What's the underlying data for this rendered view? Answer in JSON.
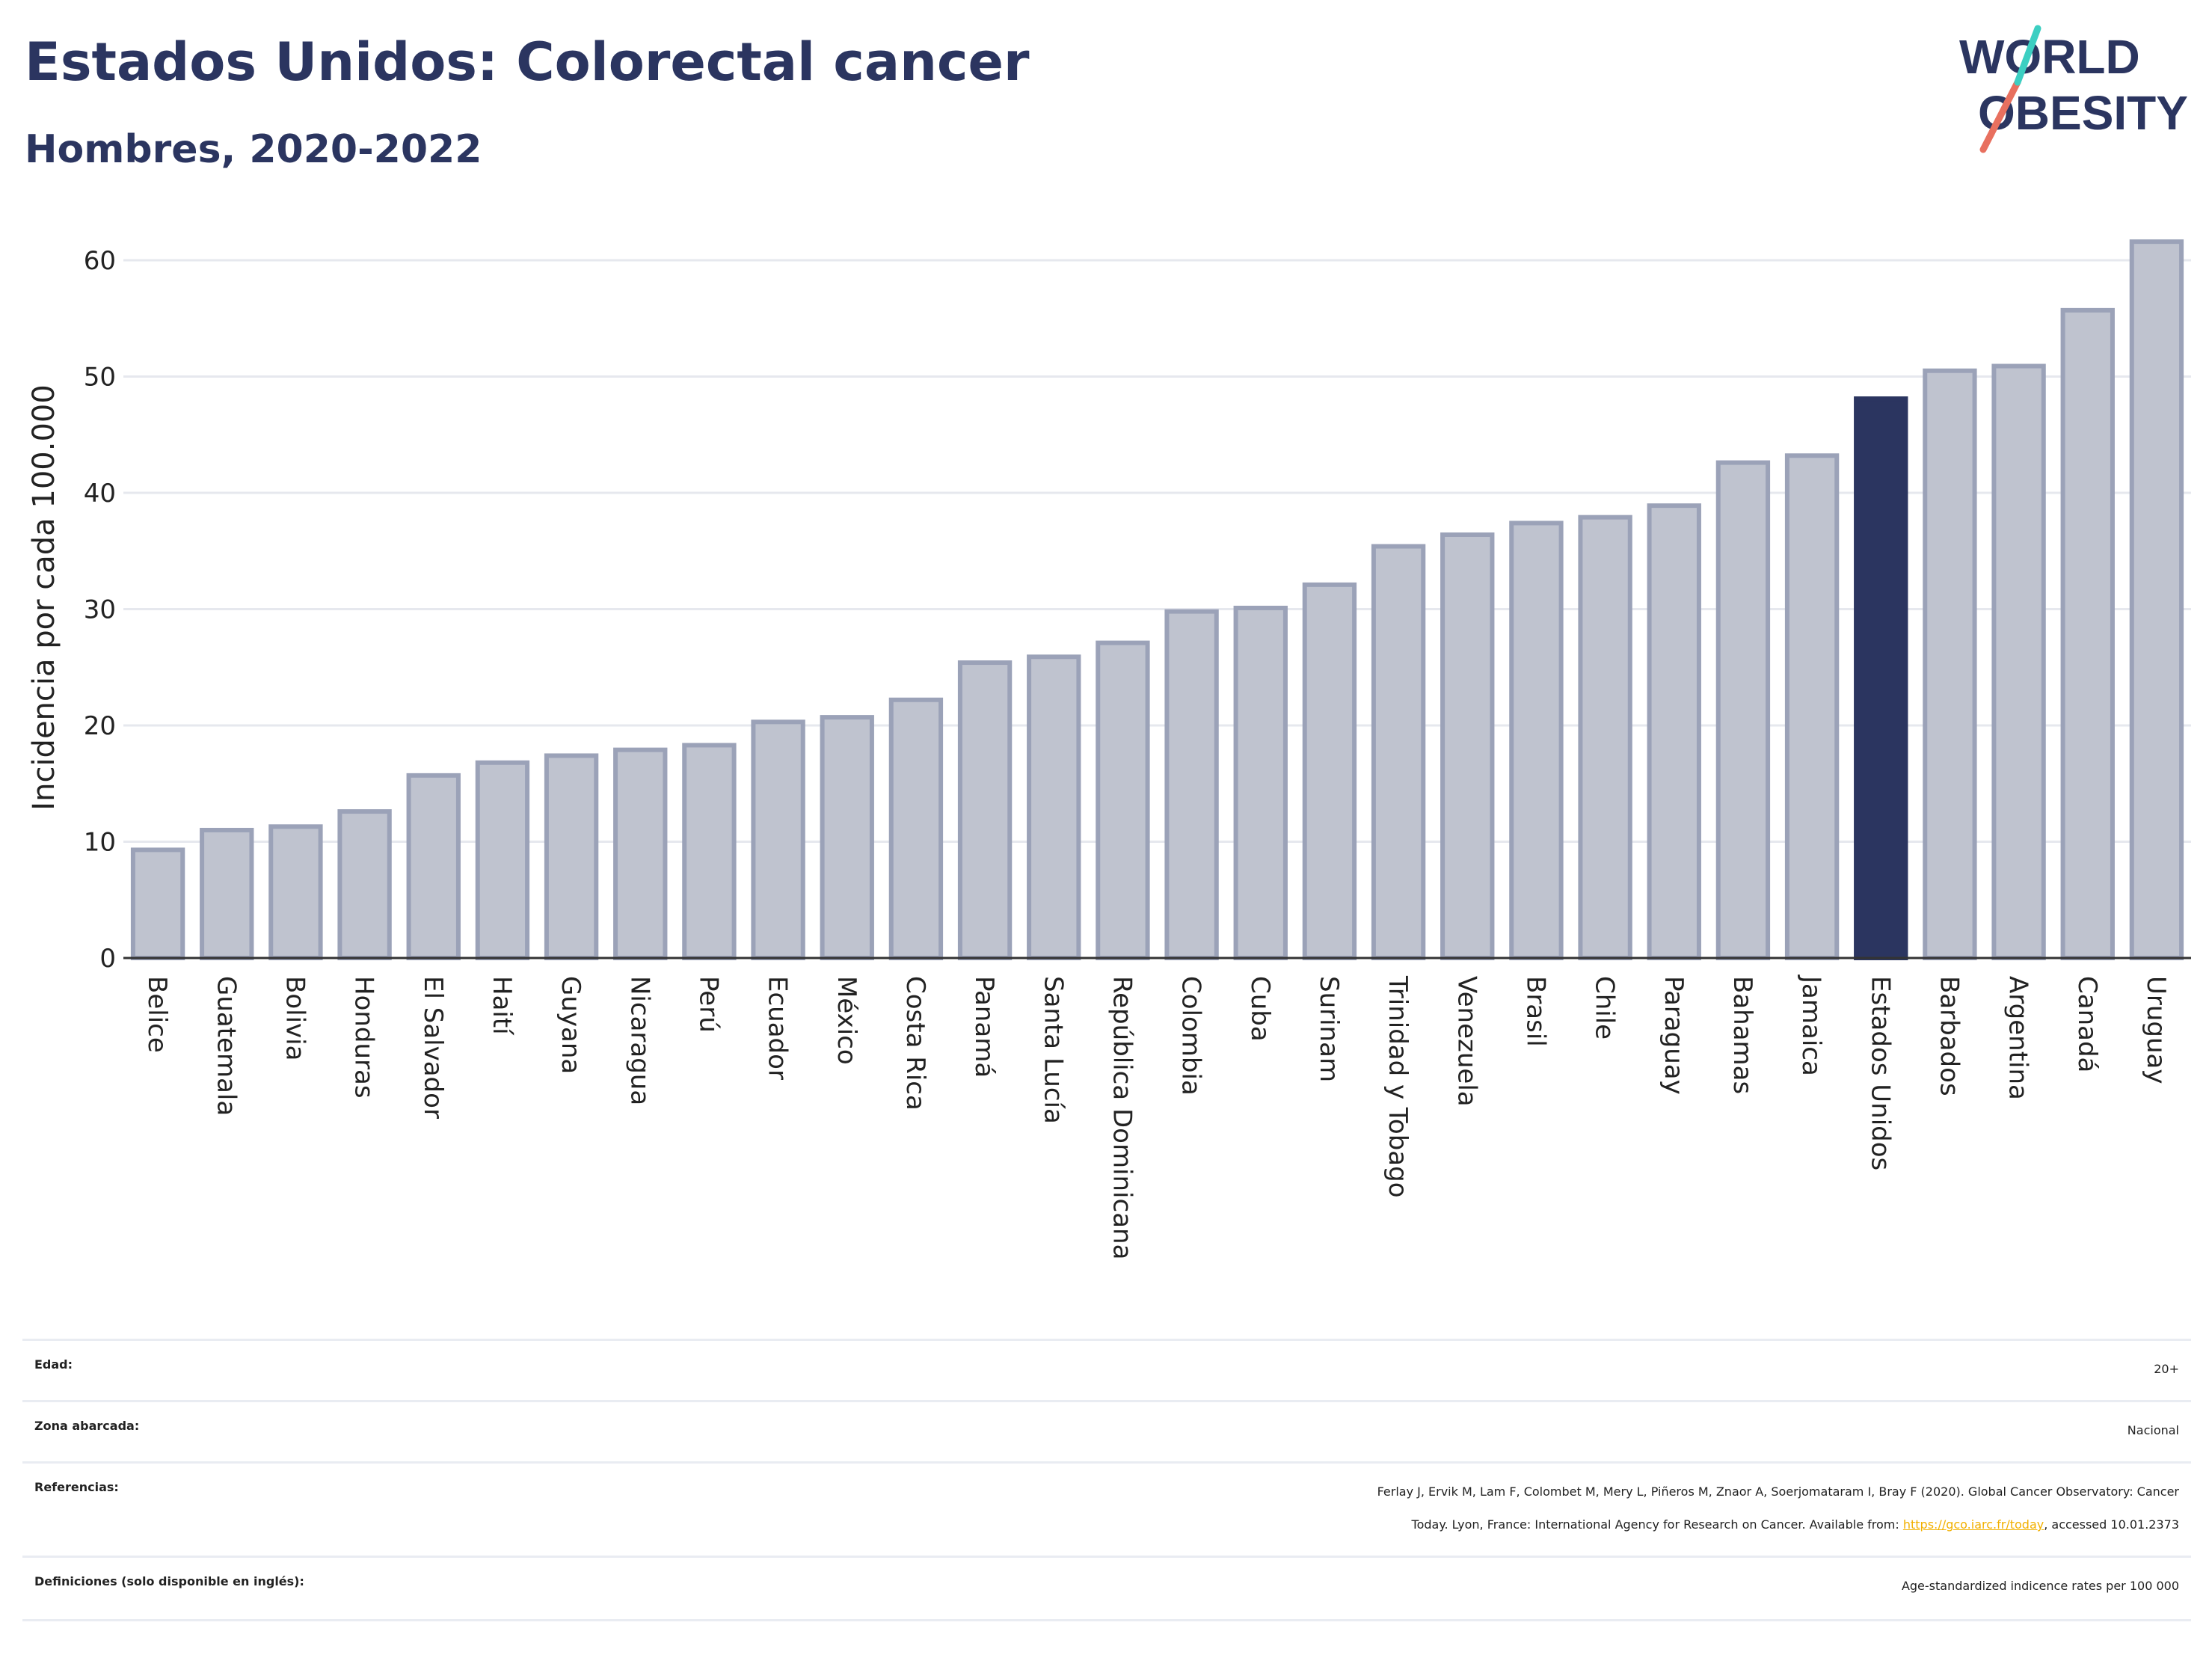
{
  "header": {
    "title": "Estados Unidos: Colorectal cancer",
    "subtitle": "Hombres, 2020-2022"
  },
  "logo": {
    "line1": "WORLD",
    "line2": "OBESITY"
  },
  "colors": {
    "highlight": "#2b3560",
    "bar": "#bfc3cf",
    "bar_edge": "#9ba2b8",
    "axis_text": "#222222",
    "grid": "#e6e8ee",
    "link": "#f2b000"
  },
  "chart_data": {
    "type": "bar",
    "ylabel": "Incidencia por cada 100.000",
    "ylim": [
      0,
      63
    ],
    "yticks": [
      0,
      10,
      20,
      30,
      40,
      50,
      60
    ],
    "grid": true,
    "highlight": "Estados Unidos",
    "categories": [
      "Belice",
      "Guatemala",
      "Bolivia",
      "Honduras",
      "El Salvador",
      "Haití",
      "Guyana",
      "Nicaragua",
      "Perú",
      "Ecuador",
      "México",
      "Costa Rica",
      "Panamá",
      "Santa Lucía",
      "República Dominicana",
      "Colombia",
      "Cuba",
      "Surinam",
      "Trinidad y Tobago",
      "Venezuela",
      "Brasil",
      "Chile",
      "Paraguay",
      "Bahamas",
      "Jamaica",
      "Estados Unidos",
      "Barbados",
      "Argentina",
      "Canadá",
      "Uruguay"
    ],
    "values": [
      9.3,
      11.0,
      11.3,
      12.6,
      15.7,
      16.8,
      17.4,
      17.9,
      18.3,
      20.3,
      20.7,
      22.2,
      25.4,
      25.9,
      27.1,
      29.8,
      30.1,
      32.1,
      35.4,
      36.4,
      37.4,
      37.9,
      38.9,
      42.6,
      43.2,
      48.1,
      50.5,
      50.9,
      55.7,
      61.6
    ]
  },
  "meta": {
    "rows": [
      {
        "label": "Edad:",
        "value": "20+"
      },
      {
        "label": "Zona abarcada:",
        "value": "Nacional"
      },
      {
        "label": "Referencias:",
        "value_line1": "Ferlay J, Ervik M, Lam F, Colombet M, Mery L, Piñeros M, Znaor A, Soerjomataram I, Bray F (2020). Global Cancer Observatory: Cancer",
        "value_line2_pre": "Today. Lyon, France: International Agency for Research on Cancer. Available from: ",
        "link": "https://gco.iarc.fr/today",
        "value_line2_post": ", accessed 10.01.2373"
      },
      {
        "label": "Definiciones (solo disponible en inglés):",
        "value": "Age-standardized indicence rates per 100 000"
      }
    ]
  }
}
